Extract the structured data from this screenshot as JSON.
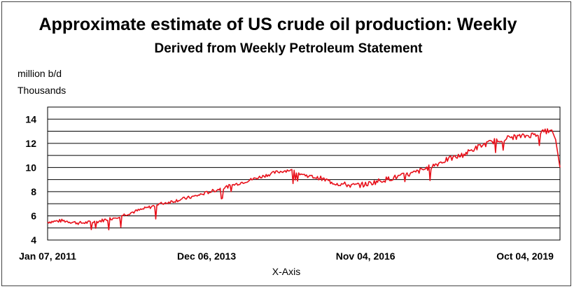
{
  "chart_data": {
    "type": "line",
    "title": "Approximate estimate of US crude oil production: Weekly",
    "subtitle": "Derived from Weekly Petroleum Statement",
    "ylabel_lines": [
      "million b/d",
      "Thousands"
    ],
    "xlabel": "X-Axis",
    "ylim": [
      4,
      15
    ],
    "yticks": [
      4,
      6,
      8,
      10,
      12,
      14
    ],
    "xticks": [
      {
        "label": "Jan 07, 2011",
        "year": 2011.02
      },
      {
        "label": "Dec 06, 2013",
        "year": 2013.93
      },
      {
        "label": "Nov 04, 2016",
        "year": 2016.84
      },
      {
        "label": "Oct 04, 2019",
        "year": 2019.76
      }
    ],
    "xlim": [
      2011.02,
      2020.4
    ],
    "grid": true,
    "legend": "none",
    "line_color": "#e8101a",
    "series": [
      {
        "x": [
          2011.02,
          2011.3,
          2011.6,
          2011.9,
          2012.2,
          2012.5,
          2012.8,
          2013.1,
          2013.4,
          2013.7,
          2014.0,
          2014.3,
          2014.6,
          2014.9,
          2015.2,
          2015.45,
          2015.7,
          2016.0,
          2016.3,
          2016.6,
          2016.84,
          2017.1,
          2017.4,
          2017.7,
          2018.0,
          2018.3,
          2018.6,
          2018.9,
          2019.2,
          2019.5,
          2019.76,
          2020.0,
          2020.15,
          2020.25,
          2020.32,
          2020.4
        ],
        "y": [
          5.5,
          5.6,
          5.4,
          5.5,
          5.8,
          6.2,
          6.6,
          7.0,
          7.3,
          7.6,
          8.0,
          8.4,
          8.8,
          9.2,
          9.6,
          9.8,
          9.4,
          9.1,
          8.7,
          8.5,
          8.6,
          8.9,
          9.2,
          9.5,
          10.0,
          10.6,
          11.0,
          11.7,
          12.2,
          12.5,
          12.6,
          12.8,
          13.0,
          13.1,
          12.3,
          10.0
        ]
      }
    ]
  }
}
